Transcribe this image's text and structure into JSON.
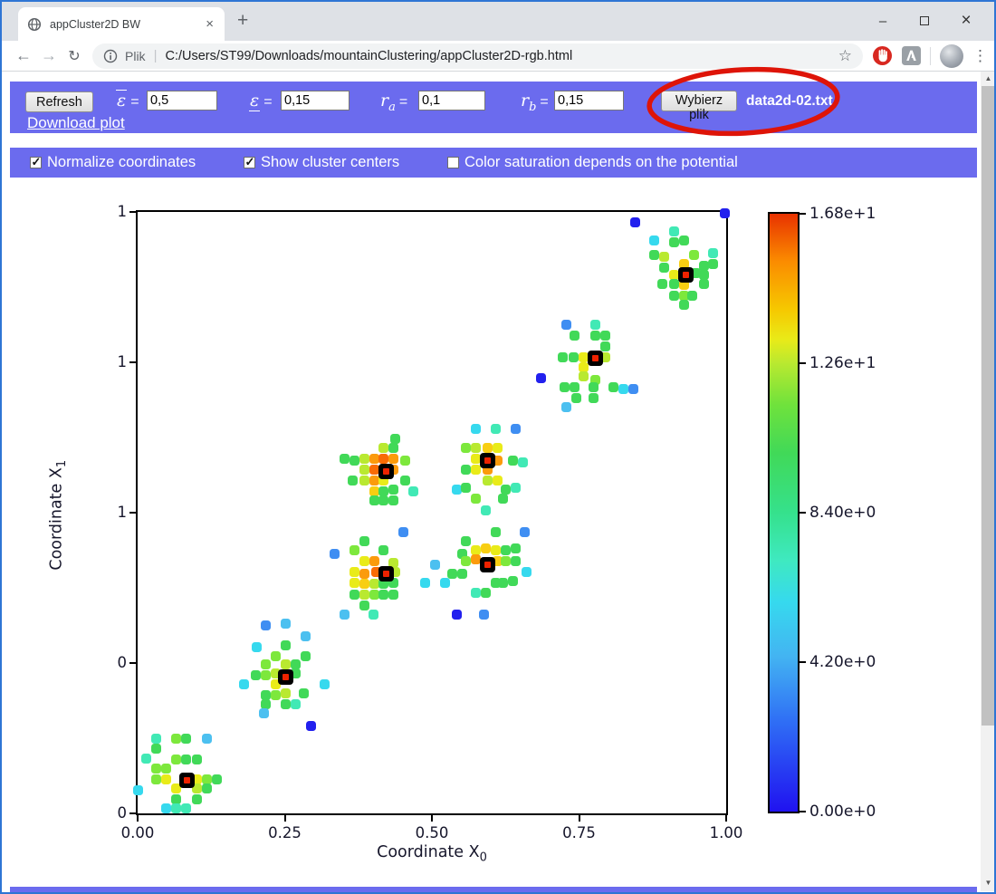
{
  "browser": {
    "tab_title": "appCluster2D BW",
    "new_tab_glyph": "+",
    "window": {
      "minimize": "–",
      "close": "×"
    },
    "back_glyph": "←",
    "forward_glyph": "→",
    "reload_glyph": "↻",
    "url_scheme_label": "Plik",
    "url": "C:/Users/ST99/Downloads/mountainClustering/appCluster2D-rgb.html",
    "bookmark_star": "☆",
    "menu_dots": "⋮"
  },
  "toolbar": {
    "refresh_label": "Refresh",
    "download_label": "Download plot",
    "fields": [
      {
        "label": "ε",
        "decoration": "overline",
        "value": "0,5"
      },
      {
        "label": "ε",
        "decoration": "underline",
        "value": "0,15"
      },
      {
        "label": "r",
        "sub": "a",
        "value": "0,1"
      },
      {
        "label": "r",
        "sub": "b",
        "value": "0,15"
      }
    ],
    "equals": "=",
    "file_button_label": "Wybierz plik",
    "file_name": "data2d-02.txt"
  },
  "options": {
    "checkboxes": [
      {
        "label": "Normalize coordinates",
        "checked": true
      },
      {
        "label": "Show cluster centers",
        "checked": true
      },
      {
        "label": "Color saturation depends on the potential",
        "checked": false
      }
    ]
  },
  "colors": {
    "accent_purple": "#6b6bee",
    "annotation_red": "#de1408",
    "center_marker_red": "#ee2200",
    "window_border_blue": "#2e75d4"
  },
  "chart_data": {
    "type": "scatter",
    "xlabel": "Coordinate X",
    "xlabel_sub": "0",
    "ylabel": "Coordinate X",
    "ylabel_sub": "1",
    "xlim": [
      0,
      1
    ],
    "ylim": [
      0,
      1
    ],
    "x_ticks": [
      "0.00",
      "0.25",
      "0.50",
      "0.75",
      "1.00"
    ],
    "y_ticks": [
      "1",
      "1",
      "1",
      "0",
      "0"
    ],
    "colorbar": {
      "labels": [
        "1.68e+1",
        "1.26e+1",
        "8.40e+0",
        "4.20e+0",
        "0.00e+0"
      ],
      "min": 0,
      "max": 16.8,
      "gradient": [
        [
          "#e83200",
          0
        ],
        [
          "#fb8c00",
          8
        ],
        [
          "#f6c800",
          16
        ],
        [
          "#e9ea18",
          21
        ],
        [
          "#b9e930",
          25
        ],
        [
          "#6fe23c",
          32
        ],
        [
          "#41d958",
          40
        ],
        [
          "#35e18c",
          50
        ],
        [
          "#3fe9c0",
          58
        ],
        [
          "#36d9ee",
          65
        ],
        [
          "#43b4f2",
          74
        ],
        [
          "#2f6ef5",
          85
        ],
        [
          "#2012f0",
          100
        ]
      ]
    },
    "palette": {
      "B": "#2220ee",
      "D": "#3f8ef2",
      "L": "#4cc0f0",
      "C": "#36d9ee",
      "T": "#41e9b5",
      "G": "#41d958",
      "g": "#7de83c",
      "Y": "#b9e930",
      "y": "#e9eb19",
      "d": "#f8ce12",
      "O": "#fb9b0c",
      "o": "#f96b05"
    },
    "centers": [
      [
        0.084,
        0.055
      ],
      [
        0.252,
        0.226
      ],
      [
        0.422,
        0.399
      ],
      [
        0.594,
        0.414
      ],
      [
        0.422,
        0.569
      ],
      [
        0.594,
        0.586
      ],
      [
        0.778,
        0.757
      ],
      [
        0.931,
        0.896
      ]
    ],
    "points": [
      [
        0.031,
        0.124,
        "T"
      ],
      [
        0.066,
        0.124,
        "g"
      ],
      [
        0.083,
        0.124,
        "G"
      ],
      [
        0.117,
        0.124,
        "L"
      ],
      [
        0.014,
        0.091,
        "T"
      ],
      [
        0.031,
        0.107,
        "G"
      ],
      [
        0.066,
        0.09,
        "g"
      ],
      [
        0.083,
        0.09,
        "G"
      ],
      [
        0.1,
        0.09,
        "G"
      ],
      [
        0.032,
        0.074,
        "g"
      ],
      [
        0.049,
        0.074,
        "g"
      ],
      [
        0.032,
        0.057,
        "g"
      ],
      [
        0.049,
        0.057,
        "y"
      ],
      [
        0.1,
        0.057,
        "y"
      ],
      [
        0.117,
        0.057,
        "g"
      ],
      [
        0.134,
        0.057,
        "G"
      ],
      [
        0.065,
        0.041,
        "y"
      ],
      [
        0.1,
        0.041,
        "Y"
      ],
      [
        0.117,
        0.041,
        "G"
      ],
      [
        0.0,
        0.038,
        "C"
      ],
      [
        0.065,
        0.024,
        "G"
      ],
      [
        0.1,
        0.024,
        "G"
      ],
      [
        0.049,
        0.008,
        "C"
      ],
      [
        0.065,
        0.008,
        "T"
      ],
      [
        0.082,
        0.008,
        "T"
      ],
      [
        0.218,
        0.312,
        "D"
      ],
      [
        0.251,
        0.315,
        "L"
      ],
      [
        0.285,
        0.294,
        "L"
      ],
      [
        0.203,
        0.277,
        "C"
      ],
      [
        0.251,
        0.279,
        "G"
      ],
      [
        0.234,
        0.262,
        "g"
      ],
      [
        0.286,
        0.262,
        "G"
      ],
      [
        0.218,
        0.247,
        "g"
      ],
      [
        0.251,
        0.247,
        "Y"
      ],
      [
        0.268,
        0.248,
        "G"
      ],
      [
        0.2,
        0.23,
        "G"
      ],
      [
        0.218,
        0.23,
        "g"
      ],
      [
        0.234,
        0.232,
        "Y"
      ],
      [
        0.268,
        0.232,
        "G"
      ],
      [
        0.18,
        0.214,
        "C"
      ],
      [
        0.317,
        0.214,
        "C"
      ],
      [
        0.218,
        0.197,
        "G"
      ],
      [
        0.234,
        0.197,
        "g"
      ],
      [
        0.251,
        0.199,
        "Y"
      ],
      [
        0.218,
        0.181,
        "G"
      ],
      [
        0.251,
        0.181,
        "G"
      ],
      [
        0.283,
        0.199,
        "G"
      ],
      [
        0.214,
        0.166,
        "L"
      ],
      [
        0.295,
        0.146,
        "B"
      ],
      [
        0.235,
        0.215,
        "y"
      ],
      [
        0.268,
        0.181,
        "T"
      ],
      [
        0.385,
        0.453,
        "G"
      ],
      [
        0.451,
        0.468,
        "D"
      ],
      [
        0.368,
        0.438,
        "g"
      ],
      [
        0.418,
        0.437,
        "G"
      ],
      [
        0.335,
        0.431,
        "D"
      ],
      [
        0.385,
        0.419,
        "y"
      ],
      [
        0.402,
        0.419,
        "O"
      ],
      [
        0.435,
        0.417,
        "Y"
      ],
      [
        0.369,
        0.401,
        "y"
      ],
      [
        0.386,
        0.399,
        "O"
      ],
      [
        0.405,
        0.401,
        "o"
      ],
      [
        0.438,
        0.402,
        "Y"
      ],
      [
        0.368,
        0.384,
        "y"
      ],
      [
        0.385,
        0.382,
        "d"
      ],
      [
        0.402,
        0.382,
        "Y"
      ],
      [
        0.418,
        0.382,
        "G"
      ],
      [
        0.434,
        0.384,
        "G"
      ],
      [
        0.368,
        0.364,
        "G"
      ],
      [
        0.385,
        0.364,
        "Y"
      ],
      [
        0.402,
        0.364,
        "g"
      ],
      [
        0.418,
        0.363,
        "G"
      ],
      [
        0.434,
        0.364,
        "G"
      ],
      [
        0.351,
        0.33,
        "L"
      ],
      [
        0.4,
        0.33,
        "T"
      ],
      [
        0.385,
        0.345,
        "G"
      ],
      [
        0.609,
        0.468,
        "G"
      ],
      [
        0.658,
        0.467,
        "D"
      ],
      [
        0.558,
        0.453,
        "G"
      ],
      [
        0.575,
        0.438,
        "y"
      ],
      [
        0.592,
        0.44,
        "d"
      ],
      [
        0.609,
        0.438,
        "y"
      ],
      [
        0.626,
        0.437,
        "G"
      ],
      [
        0.642,
        0.44,
        "G"
      ],
      [
        0.552,
        0.432,
        "G"
      ],
      [
        0.558,
        0.42,
        "g"
      ],
      [
        0.575,
        0.422,
        "O"
      ],
      [
        0.611,
        0.42,
        "d"
      ],
      [
        0.626,
        0.42,
        "g"
      ],
      [
        0.643,
        0.42,
        "G"
      ],
      [
        0.66,
        0.402,
        "C"
      ],
      [
        0.535,
        0.399,
        "G"
      ],
      [
        0.552,
        0.399,
        "G"
      ],
      [
        0.62,
        0.384,
        "G"
      ],
      [
        0.637,
        0.387,
        "G"
      ],
      [
        0.575,
        0.367,
        "T"
      ],
      [
        0.592,
        0.367,
        "G"
      ],
      [
        0.609,
        0.384,
        "G"
      ],
      [
        0.506,
        0.414,
        "L"
      ],
      [
        0.489,
        0.383,
        "C"
      ],
      [
        0.523,
        0.383,
        "C"
      ],
      [
        0.542,
        0.331,
        "B"
      ],
      [
        0.588,
        0.331,
        "D"
      ],
      [
        0.685,
        0.723,
        "B"
      ],
      [
        0.438,
        0.623,
        "G"
      ],
      [
        0.418,
        0.608,
        "Y"
      ],
      [
        0.434,
        0.607,
        "G"
      ],
      [
        0.369,
        0.587,
        "G"
      ],
      [
        0.386,
        0.589,
        "Y"
      ],
      [
        0.403,
        0.589,
        "O"
      ],
      [
        0.418,
        0.589,
        "o"
      ],
      [
        0.434,
        0.589,
        "O"
      ],
      [
        0.454,
        0.587,
        "g"
      ],
      [
        0.385,
        0.572,
        "Y"
      ],
      [
        0.403,
        0.572,
        "o"
      ],
      [
        0.435,
        0.572,
        "O"
      ],
      [
        0.366,
        0.554,
        "G"
      ],
      [
        0.385,
        0.554,
        "Y"
      ],
      [
        0.402,
        0.554,
        "O"
      ],
      [
        0.418,
        0.553,
        "y"
      ],
      [
        0.454,
        0.554,
        "G"
      ],
      [
        0.402,
        0.536,
        "d"
      ],
      [
        0.418,
        0.536,
        "G"
      ],
      [
        0.434,
        0.538,
        "G"
      ],
      [
        0.469,
        0.536,
        "T"
      ],
      [
        0.403,
        0.52,
        "G"
      ],
      [
        0.418,
        0.52,
        "G"
      ],
      [
        0.434,
        0.52,
        "G"
      ],
      [
        0.352,
        0.589,
        "G"
      ],
      [
        0.575,
        0.64,
        "C"
      ],
      [
        0.609,
        0.639,
        "T"
      ],
      [
        0.642,
        0.639,
        "D"
      ],
      [
        0.558,
        0.607,
        "g"
      ],
      [
        0.575,
        0.608,
        "Y"
      ],
      [
        0.594,
        0.607,
        "d"
      ],
      [
        0.611,
        0.608,
        "y"
      ],
      [
        0.575,
        0.589,
        "y"
      ],
      [
        0.611,
        0.587,
        "O"
      ],
      [
        0.638,
        0.586,
        "G"
      ],
      [
        0.654,
        0.584,
        "T"
      ],
      [
        0.558,
        0.571,
        "G"
      ],
      [
        0.575,
        0.571,
        "y"
      ],
      [
        0.594,
        0.571,
        "O"
      ],
      [
        0.594,
        0.554,
        "Y"
      ],
      [
        0.611,
        0.554,
        "y"
      ],
      [
        0.542,
        0.539,
        "C"
      ],
      [
        0.558,
        0.542,
        "G"
      ],
      [
        0.626,
        0.538,
        "G"
      ],
      [
        0.642,
        0.541,
        "T"
      ],
      [
        0.575,
        0.523,
        "g"
      ],
      [
        0.592,
        0.504,
        "T"
      ],
      [
        0.62,
        0.523,
        "G"
      ],
      [
        0.728,
        0.812,
        "D"
      ],
      [
        0.777,
        0.812,
        "T"
      ],
      [
        0.743,
        0.794,
        "G"
      ],
      [
        0.777,
        0.794,
        "G"
      ],
      [
        0.794,
        0.794,
        "G"
      ],
      [
        0.723,
        0.759,
        "G"
      ],
      [
        0.74,
        0.759,
        "G"
      ],
      [
        0.757,
        0.759,
        "y"
      ],
      [
        0.795,
        0.759,
        "Y"
      ],
      [
        0.758,
        0.741,
        "y"
      ],
      [
        0.758,
        0.726,
        "Y"
      ],
      [
        0.777,
        0.721,
        "g"
      ],
      [
        0.725,
        0.708,
        "G"
      ],
      [
        0.742,
        0.708,
        "G"
      ],
      [
        0.774,
        0.708,
        "G"
      ],
      [
        0.809,
        0.708,
        "G"
      ],
      [
        0.826,
        0.706,
        "C"
      ],
      [
        0.842,
        0.706,
        "D"
      ],
      [
        0.745,
        0.691,
        "G"
      ],
      [
        0.774,
        0.691,
        "G"
      ],
      [
        0.728,
        0.675,
        "L"
      ],
      [
        0.794,
        0.776,
        "G"
      ],
      [
        0.912,
        0.967,
        "T"
      ],
      [
        0.877,
        0.952,
        "C"
      ],
      [
        0.912,
        0.949,
        "G"
      ],
      [
        0.929,
        0.952,
        "G"
      ],
      [
        0.877,
        0.929,
        "G"
      ],
      [
        0.978,
        0.932,
        "T"
      ],
      [
        0.895,
        0.926,
        "Y"
      ],
      [
        0.945,
        0.929,
        "g"
      ],
      [
        0.962,
        0.911,
        "G"
      ],
      [
        0.978,
        0.914,
        "G"
      ],
      [
        0.928,
        0.914,
        "d"
      ],
      [
        0.911,
        0.896,
        "y"
      ],
      [
        0.949,
        0.898,
        "G"
      ],
      [
        0.962,
        0.895,
        "G"
      ],
      [
        0.892,
        0.881,
        "G"
      ],
      [
        0.911,
        0.881,
        "G"
      ],
      [
        0.928,
        0.879,
        "d"
      ],
      [
        0.962,
        0.881,
        "G"
      ],
      [
        0.911,
        0.861,
        "G"
      ],
      [
        0.928,
        0.861,
        "g"
      ],
      [
        0.943,
        0.861,
        "G"
      ],
      [
        0.928,
        0.845,
        "G"
      ],
      [
        0.895,
        0.908,
        "G"
      ],
      [
        0.997,
        0.997,
        "B"
      ],
      [
        0.845,
        0.982,
        "B"
      ]
    ]
  }
}
